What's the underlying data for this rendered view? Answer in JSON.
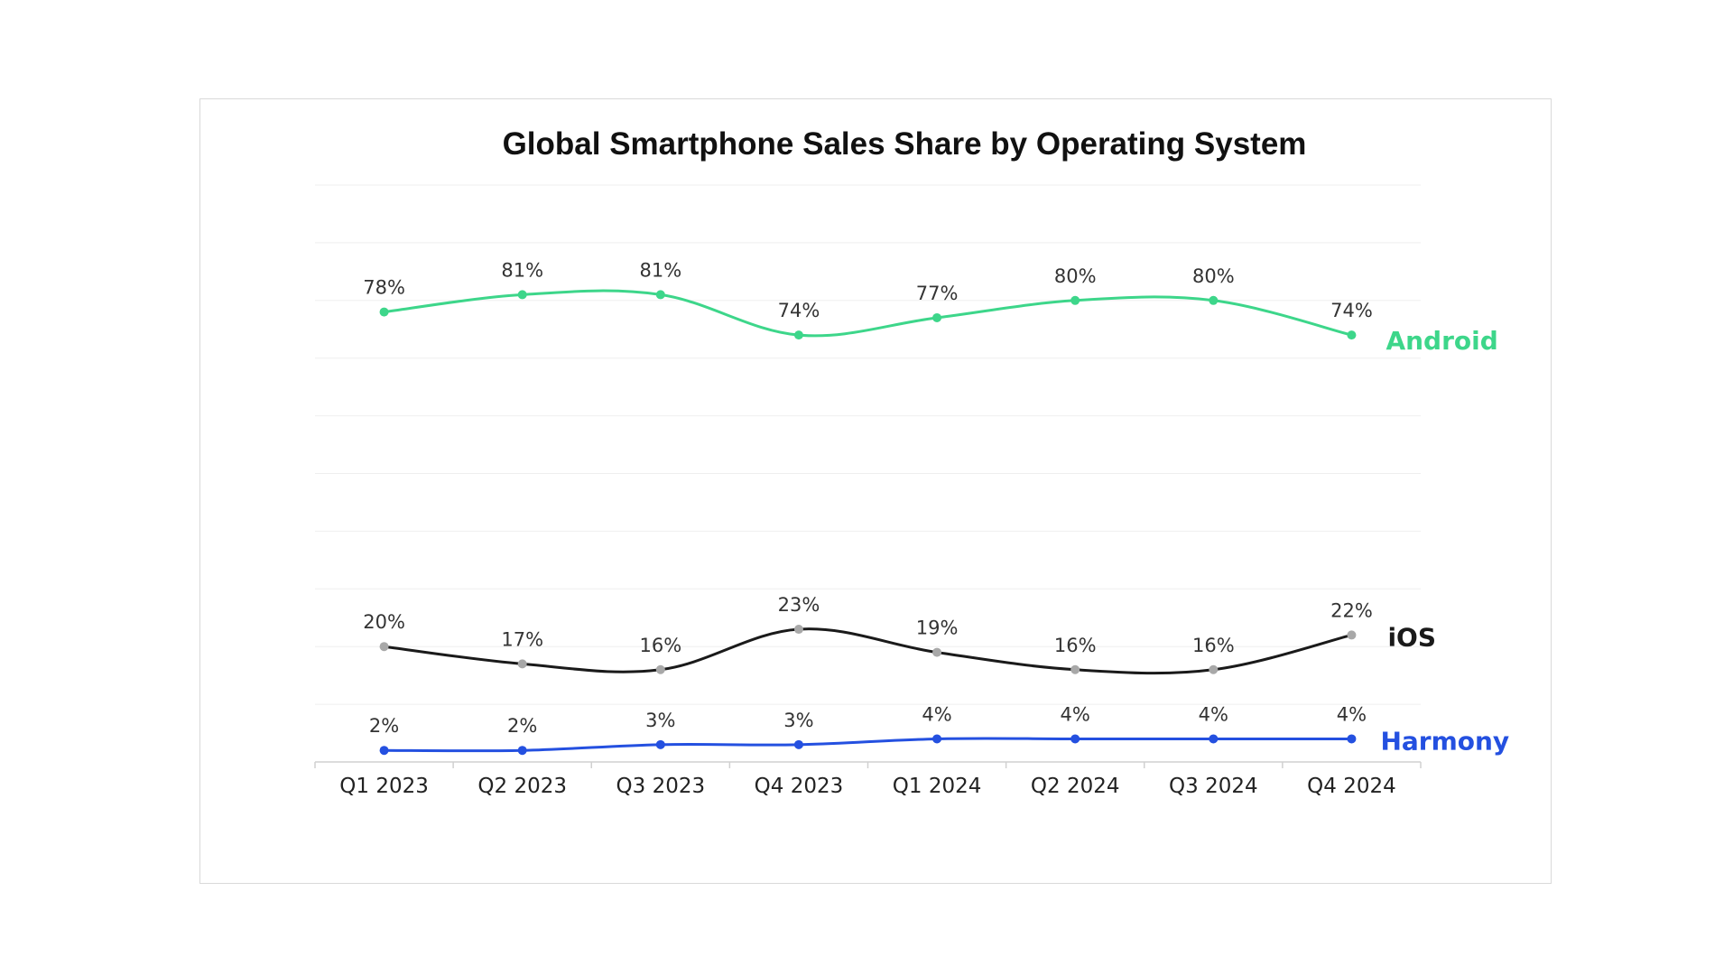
{
  "chart_data": {
    "type": "line",
    "title": "Global Smartphone Sales Share by Operating System",
    "xlabel": "",
    "ylabel": "",
    "ylim": [
      0,
      100
    ],
    "grid": true,
    "categories": [
      "Q1 2023",
      "Q2 2023",
      "Q3 2023",
      "Q4 2023",
      "Q1 2024",
      "Q2 2024",
      "Q3 2024",
      "Q4 2024"
    ],
    "series": [
      {
        "name": "Android",
        "color": "#3dd68a",
        "marker_color": "#3dd68a",
        "values": [
          78,
          81,
          81,
          74,
          77,
          80,
          80,
          74
        ],
        "labels": [
          "78%",
          "81%",
          "81%",
          "74%",
          "77%",
          "80%",
          "80%",
          "74%"
        ]
      },
      {
        "name": "iOS",
        "color": "#1a1a1a",
        "marker_color": "#a8a8a8",
        "values": [
          20,
          17,
          16,
          23,
          19,
          16,
          16,
          22
        ],
        "labels": [
          "20%",
          "17%",
          "16%",
          "23%",
          "19%",
          "16%",
          "16%",
          "22%"
        ]
      },
      {
        "name": "Harmony",
        "color": "#2450e0",
        "marker_color": "#2450e0",
        "values": [
          2,
          2,
          3,
          3,
          4,
          4,
          4,
          4
        ],
        "labels": [
          "2%",
          "2%",
          "3%",
          "3%",
          "4%",
          "4%",
          "4%",
          "4%"
        ]
      }
    ],
    "legend": "series labels at right end of each line"
  }
}
